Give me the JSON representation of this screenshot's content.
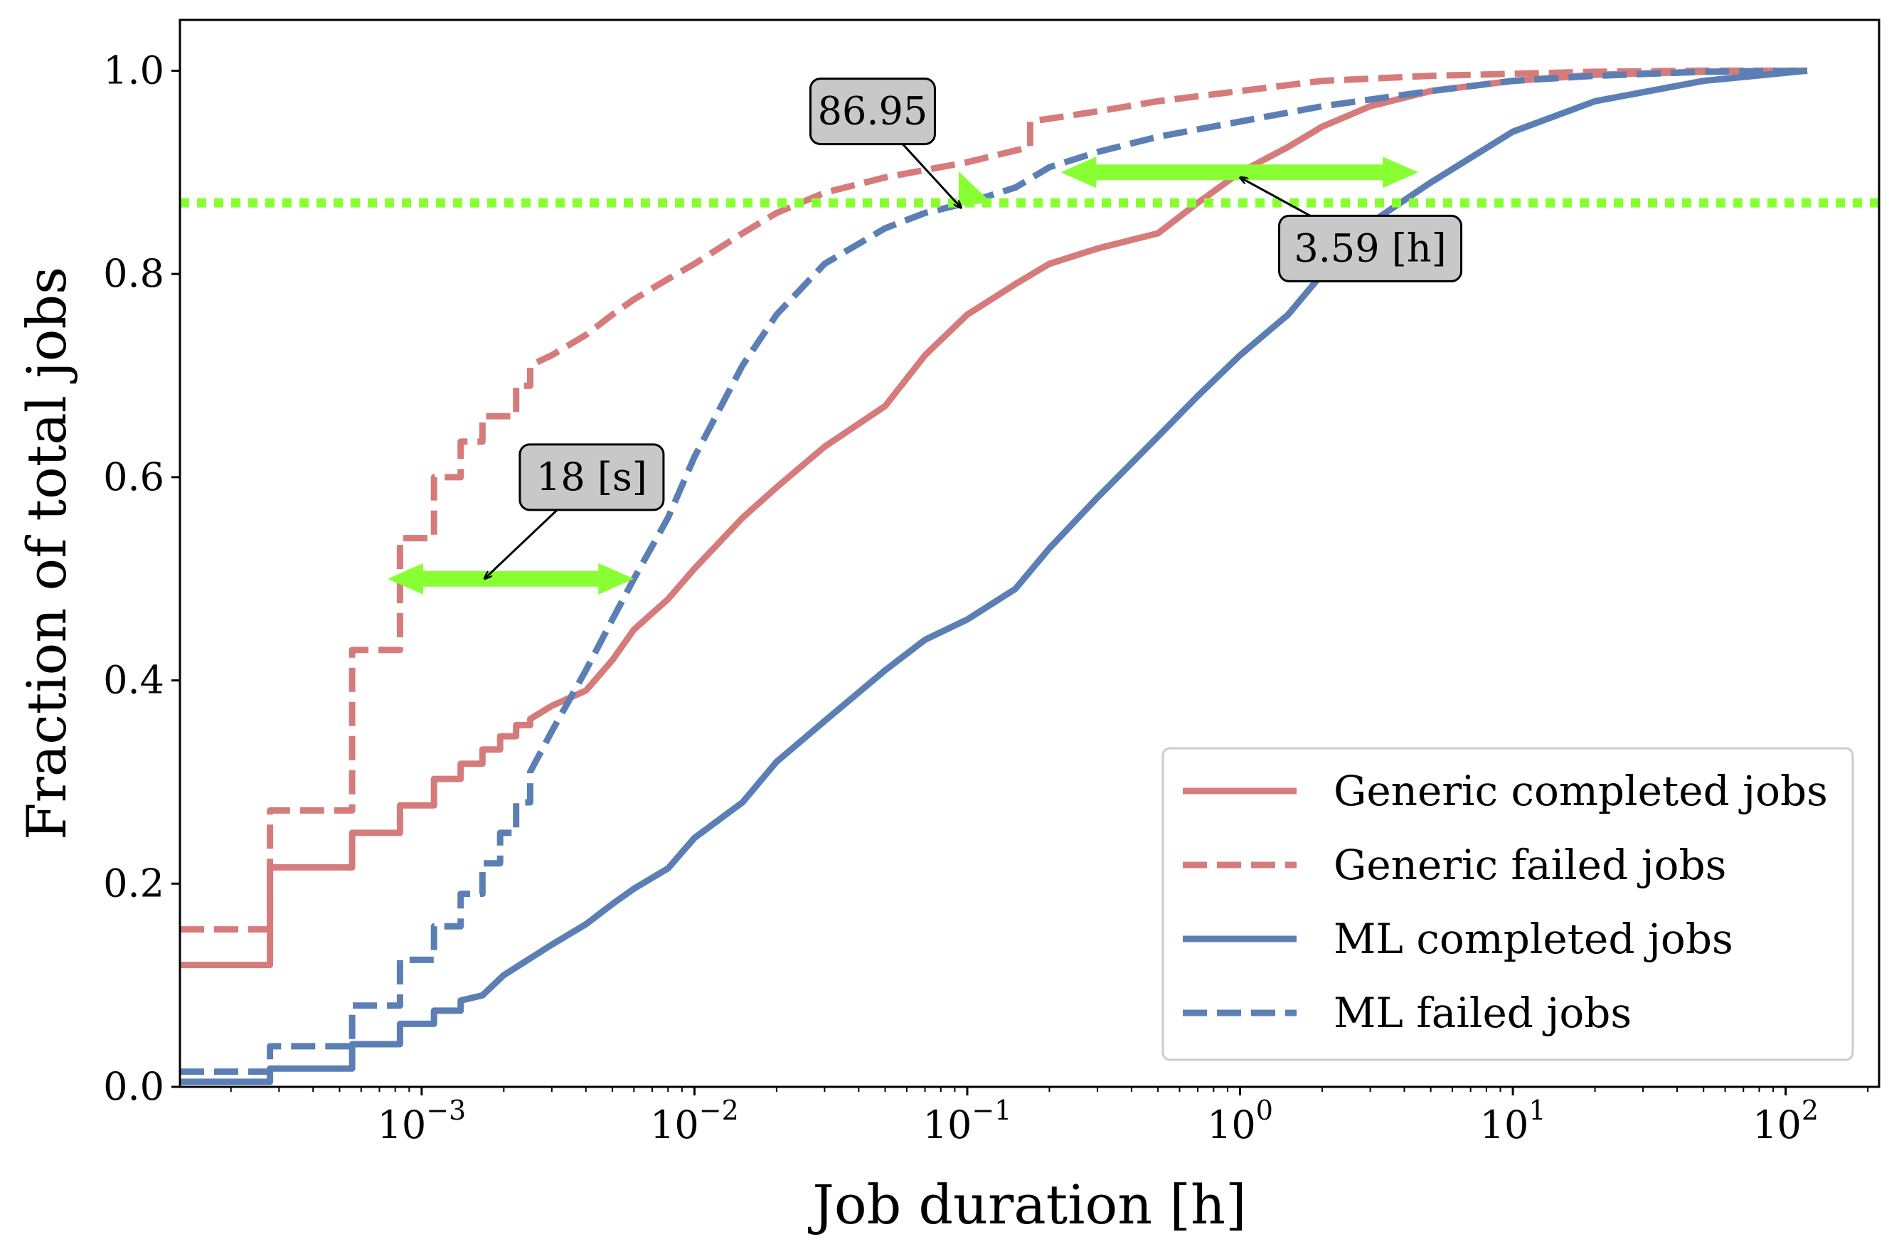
{
  "chart_data": {
    "type": "line",
    "xlabel": "Job duration [h]",
    "ylabel": "Fraction of total jobs",
    "xscale": "log",
    "xlim": [
      0.00013,
      220
    ],
    "ylim": [
      0,
      1.05
    ],
    "y_ticks": [
      {
        "value": 0.0,
        "label": "0.0"
      },
      {
        "value": 0.2,
        "label": "0.2"
      },
      {
        "value": 0.4,
        "label": "0.4"
      },
      {
        "value": 0.6,
        "label": "0.6"
      },
      {
        "value": 0.8,
        "label": "0.8"
      },
      {
        "value": 1.0,
        "label": "1.0"
      }
    ],
    "x_ticks": [
      {
        "value": 0.001,
        "base": "10",
        "exp": "−3"
      },
      {
        "value": 0.01,
        "base": "10",
        "exp": "−2"
      },
      {
        "value": 0.1,
        "base": "10",
        "exp": "−1"
      },
      {
        "value": 1,
        "base": "10",
        "exp": "0"
      },
      {
        "value": 10,
        "base": "10",
        "exp": "1"
      },
      {
        "value": 100,
        "base": "10",
        "exp": "2"
      }
    ],
    "legend_position": "bottom-right",
    "colors": {
      "generic": "#d67b7b",
      "ml": "#5b7fb5",
      "highlight": "#88ff33"
    },
    "series": [
      {
        "name": "Generic completed jobs",
        "group": "generic",
        "style": "solid",
        "x": [
          0.00013,
          0.000278,
          0.000278,
          0.000556,
          0.000556,
          0.000833,
          0.000833,
          0.00111,
          0.00111,
          0.00139,
          0.00139,
          0.00167,
          0.00167,
          0.00194,
          0.00194,
          0.00222,
          0.00222,
          0.0025,
          0.0025,
          0.003,
          0.004,
          0.005,
          0.006,
          0.008,
          0.01,
          0.015,
          0.02,
          0.03,
          0.05,
          0.07,
          0.1,
          0.15,
          0.2,
          0.3,
          0.5,
          0.7,
          1.0,
          1.5,
          2.0,
          3.0,
          5.0,
          10,
          20,
          50,
          120
        ],
        "y": [
          0.12,
          0.12,
          0.216,
          0.216,
          0.25,
          0.25,
          0.277,
          0.277,
          0.303,
          0.303,
          0.318,
          0.318,
          0.332,
          0.332,
          0.345,
          0.345,
          0.356,
          0.356,
          0.362,
          0.375,
          0.39,
          0.42,
          0.45,
          0.48,
          0.51,
          0.56,
          0.59,
          0.63,
          0.67,
          0.72,
          0.76,
          0.79,
          0.81,
          0.825,
          0.84,
          0.87,
          0.9,
          0.925,
          0.945,
          0.965,
          0.98,
          0.99,
          0.996,
          0.999,
          1.0
        ]
      },
      {
        "name": "Generic failed jobs",
        "group": "generic",
        "style": "dashed",
        "x": [
          0.00013,
          0.000278,
          0.000278,
          0.000556,
          0.000556,
          0.000833,
          0.000833,
          0.00111,
          0.00111,
          0.00139,
          0.00139,
          0.00167,
          0.00167,
          0.00222,
          0.00222,
          0.0025,
          0.0025,
          0.003,
          0.004,
          0.005,
          0.006,
          0.008,
          0.01,
          0.015,
          0.02,
          0.03,
          0.05,
          0.1,
          0.17,
          0.17,
          0.3,
          0.5,
          1.0,
          2.0,
          5.0,
          10,
          20,
          50,
          120
        ],
        "y": [
          0.155,
          0.155,
          0.272,
          0.272,
          0.43,
          0.43,
          0.54,
          0.54,
          0.6,
          0.6,
          0.635,
          0.635,
          0.66,
          0.66,
          0.69,
          0.69,
          0.71,
          0.72,
          0.74,
          0.76,
          0.775,
          0.795,
          0.81,
          0.84,
          0.86,
          0.88,
          0.895,
          0.91,
          0.925,
          0.95,
          0.96,
          0.97,
          0.98,
          0.99,
          0.995,
          0.997,
          0.999,
          1.0,
          1.0
        ]
      },
      {
        "name": "ML completed jobs",
        "group": "ml",
        "style": "solid",
        "x": [
          0.00013,
          0.000278,
          0.000278,
          0.000556,
          0.000556,
          0.000833,
          0.000833,
          0.00111,
          0.00111,
          0.00139,
          0.00139,
          0.00167,
          0.002,
          0.003,
          0.004,
          0.005,
          0.006,
          0.008,
          0.01,
          0.015,
          0.02,
          0.03,
          0.05,
          0.07,
          0.1,
          0.15,
          0.2,
          0.3,
          0.5,
          0.7,
          1.0,
          1.5,
          2.0,
          3.0,
          5.0,
          10,
          20,
          50,
          120
        ],
        "y": [
          0.005,
          0.005,
          0.018,
          0.018,
          0.042,
          0.042,
          0.062,
          0.062,
          0.075,
          0.075,
          0.085,
          0.09,
          0.11,
          0.14,
          0.16,
          0.18,
          0.195,
          0.215,
          0.245,
          0.28,
          0.32,
          0.36,
          0.41,
          0.44,
          0.46,
          0.49,
          0.53,
          0.58,
          0.64,
          0.68,
          0.72,
          0.76,
          0.8,
          0.85,
          0.89,
          0.94,
          0.97,
          0.99,
          1.0
        ]
      },
      {
        "name": "ML failed jobs",
        "group": "ml",
        "style": "dashed",
        "x": [
          0.00013,
          0.000278,
          0.000278,
          0.000556,
          0.000556,
          0.000833,
          0.000833,
          0.00111,
          0.00111,
          0.00139,
          0.00139,
          0.00167,
          0.00167,
          0.00194,
          0.00194,
          0.00222,
          0.00222,
          0.0025,
          0.0025,
          0.003,
          0.004,
          0.005,
          0.006,
          0.008,
          0.01,
          0.015,
          0.02,
          0.03,
          0.05,
          0.07,
          0.1,
          0.15,
          0.2,
          0.3,
          0.5,
          1.0,
          2.0,
          5.0,
          10,
          20,
          50,
          120
        ],
        "y": [
          0.015,
          0.015,
          0.04,
          0.04,
          0.08,
          0.08,
          0.125,
          0.125,
          0.158,
          0.158,
          0.19,
          0.19,
          0.22,
          0.22,
          0.25,
          0.25,
          0.28,
          0.28,
          0.31,
          0.35,
          0.41,
          0.46,
          0.5,
          0.56,
          0.62,
          0.71,
          0.76,
          0.81,
          0.845,
          0.86,
          0.87,
          0.885,
          0.905,
          0.92,
          0.935,
          0.95,
          0.965,
          0.98,
          0.99,
          0.995,
          0.999,
          1.0
        ]
      }
    ],
    "reference_line": {
      "y": 0.87,
      "style": "dotted"
    },
    "range_arrows": [
      {
        "y": 0.5,
        "x_from": 0.00075,
        "x_to": 0.006
      },
      {
        "y": 0.9,
        "x_from": 0.22,
        "x_to": 4.5
      }
    ],
    "annotations": [
      {
        "text": "18 [s]",
        "target_x": 0.0017,
        "target_y": 0.5,
        "text_x": 0.0042,
        "text_y": 0.6
      },
      {
        "text": "86.95",
        "target_x": 0.095,
        "target_y": 0.865,
        "text_x": 0.045,
        "text_y": 0.96
      },
      {
        "text": "3.59 [h]",
        "target_x": 1.0,
        "target_y": 0.895,
        "text_x": 3.0,
        "text_y": 0.825
      }
    ]
  }
}
